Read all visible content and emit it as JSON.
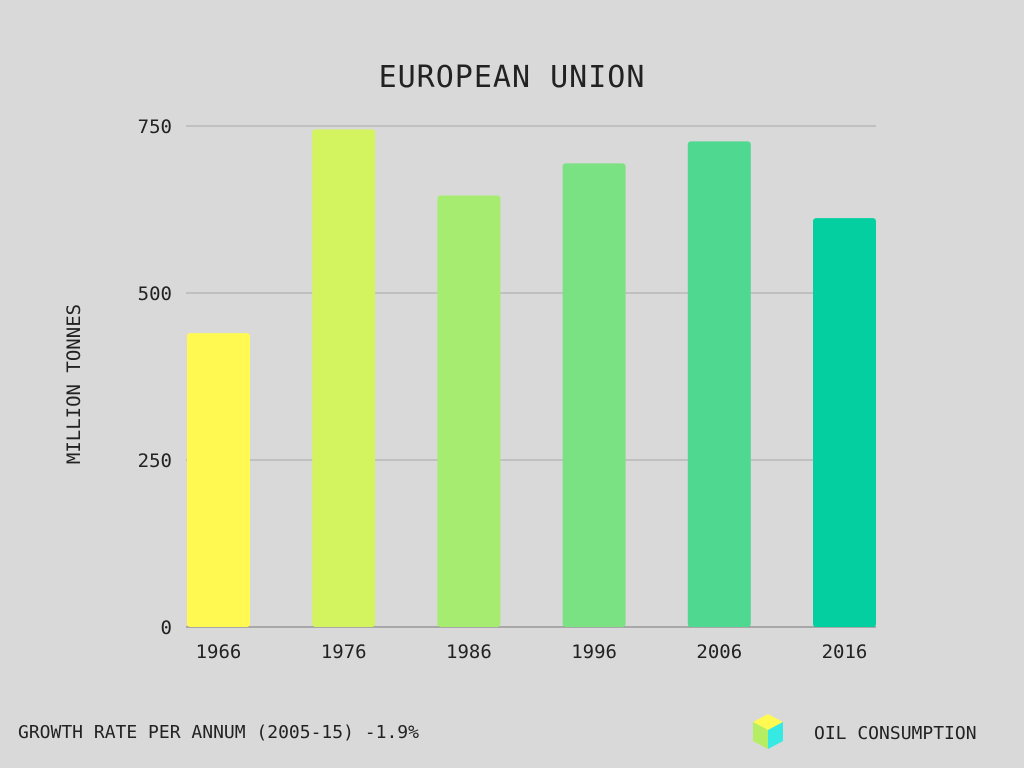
{
  "chart_data": {
    "type": "bar",
    "title": "EUROPEAN UNION",
    "ylabel": "MILLION TONNES",
    "xlabel": "",
    "categories": [
      "1966",
      "1976",
      "1986",
      "1996",
      "2006",
      "2016"
    ],
    "values": [
      440,
      745,
      646,
      694,
      727,
      612
    ],
    "bar_colors": [
      "#fff952",
      "#d3f35f",
      "#a6ec70",
      "#7be283",
      "#4fd890",
      "#04cfa1"
    ],
    "ylim": [
      0,
      750
    ],
    "yticks": [
      "0",
      "250",
      "500",
      "750"
    ],
    "grid": true
  },
  "footer": {
    "growth_rate": "GROWTH RATE PER ANNUM (2005-15) -1.9%",
    "legend_label": "OIL CONSUMPTION",
    "legend_icon": "cube-icon",
    "legend_icon_colors": {
      "top": "#fff952",
      "left": "#b5ee62",
      "right": "#36e9e3"
    }
  }
}
